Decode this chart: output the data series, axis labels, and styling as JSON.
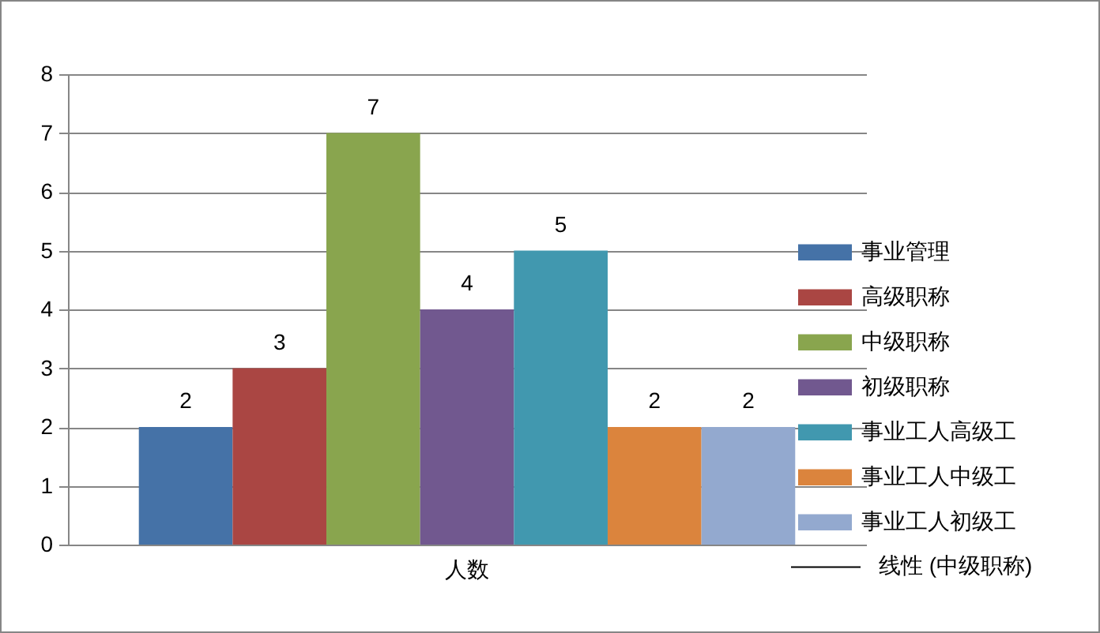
{
  "chart_data": {
    "type": "bar",
    "categories": [
      "人数"
    ],
    "series": [
      {
        "name": "事业管理",
        "color": "#4572a7",
        "values": [
          2
        ]
      },
      {
        "name": "高级职称",
        "color": "#aa4643",
        "values": [
          3
        ]
      },
      {
        "name": "中级职称",
        "color": "#89a54e",
        "values": [
          7
        ]
      },
      {
        "name": "初级职称",
        "color": "#71588f",
        "values": [
          4
        ]
      },
      {
        "name": "事业工人高级工",
        "color": "#4198af",
        "values": [
          5
        ]
      },
      {
        "name": "事业工人中级工",
        "color": "#db843d",
        "values": [
          2
        ]
      },
      {
        "name": "事业工人初级工",
        "color": "#93a9cf",
        "values": [
          2
        ]
      },
      {
        "name": "线性 (中级职称)",
        "type": "line",
        "color": "#000000",
        "values": [
          null
        ]
      }
    ],
    "ylim": [
      0,
      8
    ],
    "yticks": [
      0,
      1,
      2,
      3,
      4,
      5,
      6,
      7,
      8
    ],
    "grid": true,
    "legend": "right",
    "data_labels": true
  }
}
